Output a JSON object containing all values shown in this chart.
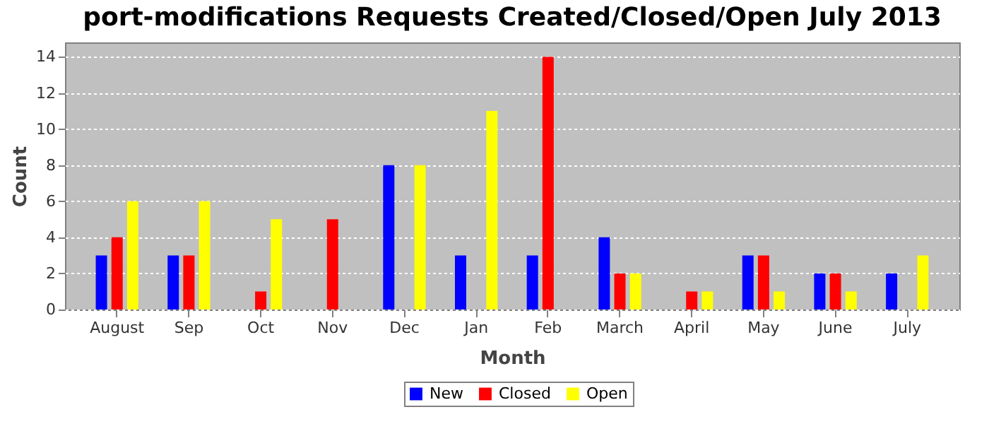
{
  "chart_data": {
    "type": "bar",
    "title": "port-modifications Requests Created/Closed/Open July 2013",
    "xlabel": "Month",
    "ylabel": "Count",
    "categories": [
      "August",
      "Sep",
      "Oct",
      "Nov",
      "Dec",
      "Jan",
      "Feb",
      "March",
      "April",
      "May",
      "June",
      "July"
    ],
    "series": [
      {
        "name": "New",
        "color": "#0000ff",
        "values": [
          3,
          3,
          0,
          0,
          8,
          3,
          3,
          4,
          0,
          3,
          2,
          2
        ]
      },
      {
        "name": "Closed",
        "color": "#ff0000",
        "values": [
          4,
          3,
          1,
          5,
          0,
          0,
          14,
          2,
          1,
          3,
          2,
          0
        ]
      },
      {
        "name": "Open",
        "color": "#ffff00",
        "values": [
          6,
          6,
          5,
          0,
          8,
          11,
          0,
          2,
          1,
          1,
          1,
          3
        ]
      }
    ],
    "ylim": [
      0,
      14.8
    ],
    "yticks": [
      0,
      2,
      4,
      6,
      8,
      10,
      12,
      14
    ],
    "grid": "y",
    "legend": "bottom"
  }
}
